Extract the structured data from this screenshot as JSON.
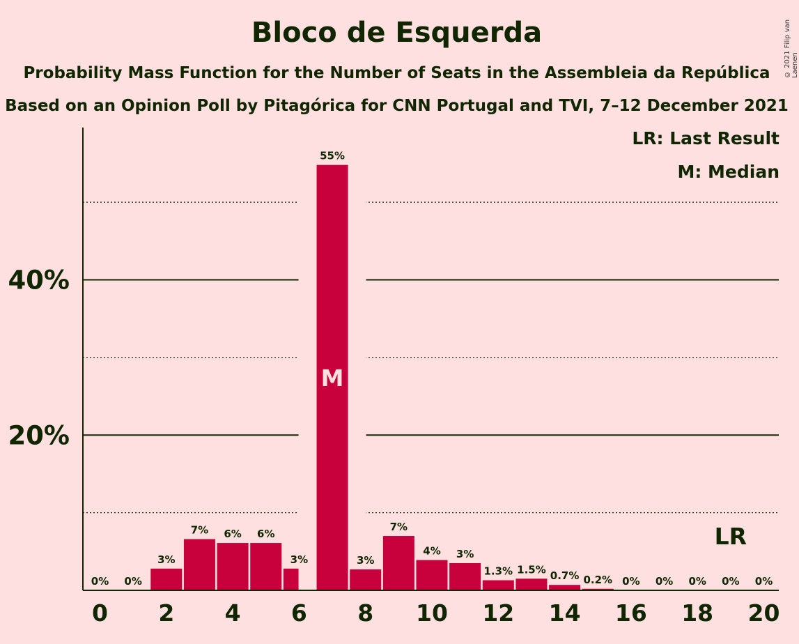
{
  "header": {
    "title": "Bloco de Esquerda",
    "subtitle": "Probability Mass Function for the Number of Seats in the Assembleia da República",
    "source": "Based on an Opinion Poll by Pitagórica for CNN Portugal and TVI, 7–12 December 2021",
    "copyright": "© 2021 Filip van Laenen"
  },
  "legend": {
    "last_result": "LR: Last Result",
    "median": "M: Median"
  },
  "colors": {
    "bar": "#C8003C",
    "background": "#FFE0E0",
    "text": "#0F2600"
  },
  "chart_data": {
    "type": "bar",
    "title": "Bloco de Esquerda",
    "xlabel": "",
    "ylabel": "",
    "x": [
      0,
      1,
      2,
      3,
      4,
      5,
      6,
      7,
      8,
      9,
      10,
      11,
      12,
      13,
      14,
      15,
      16,
      17,
      18,
      19,
      20
    ],
    "values": [
      0,
      0,
      2.8,
      6.6,
      6.1,
      6.1,
      2.8,
      54.8,
      2.7,
      7.0,
      3.9,
      3.5,
      1.3,
      1.5,
      0.7,
      0.2,
      0,
      0,
      0,
      0,
      0
    ],
    "data_labels": [
      "0%",
      "0%",
      "3%",
      "7%",
      "6%",
      "6%",
      "3%",
      "55%",
      "3%",
      "7%",
      "4%",
      "3%",
      "1.3%",
      "1.5%",
      "0.7%",
      "0.2%",
      "0%",
      "0%",
      "0%",
      "0%",
      "0%"
    ],
    "x_ticks": [
      "0",
      "2",
      "4",
      "6",
      "8",
      "10",
      "12",
      "14",
      "16",
      "18",
      "20"
    ],
    "y_ticks": [
      "20%",
      "40%"
    ],
    "y_tick_values": [
      20,
      40
    ],
    "y_dotted_gridlines": [
      10,
      30,
      50
    ],
    "ylim": [
      0,
      59.5
    ],
    "median_seat": 7,
    "median_marker": "M",
    "last_result_seat": 19,
    "last_result_marker": "LR",
    "grid": true,
    "legend_position": "top-right"
  }
}
